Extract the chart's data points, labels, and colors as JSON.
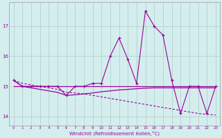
{
  "x": [
    0,
    1,
    2,
    3,
    4,
    5,
    6,
    7,
    8,
    9,
    10,
    11,
    12,
    13,
    14,
    15,
    16,
    17,
    18,
    19,
    20,
    21,
    22,
    23
  ],
  "y_main": [
    15.2,
    15.0,
    15.0,
    15.0,
    15.0,
    15.0,
    14.7,
    15.0,
    15.0,
    15.1,
    15.1,
    16.0,
    16.6,
    15.9,
    15.1,
    17.5,
    17.0,
    16.7,
    15.2,
    14.1,
    15.0,
    15.0,
    14.1,
    15.0
  ],
  "y_flat": [
    15.0,
    15.0,
    15.0,
    15.0,
    15.0,
    15.0,
    15.0,
    15.0,
    15.0,
    15.0,
    15.0,
    15.0,
    15.0,
    15.0,
    15.0,
    15.0,
    15.0,
    15.0,
    15.0,
    15.0,
    15.0,
    15.0,
    15.0,
    15.0
  ],
  "y_curve": [
    15.2,
    15.0,
    14.95,
    14.9,
    14.85,
    14.8,
    14.7,
    14.72,
    14.75,
    14.78,
    14.82,
    14.85,
    14.88,
    14.9,
    14.92,
    14.94,
    14.95,
    14.95,
    14.95,
    14.95,
    14.95,
    14.95,
    14.95,
    14.95
  ],
  "y_dashed": [
    15.2,
    15.1,
    15.05,
    15.0,
    14.95,
    14.9,
    14.8,
    14.78,
    14.75,
    14.7,
    14.65,
    14.6,
    14.55,
    14.5,
    14.45,
    14.4,
    14.35,
    14.3,
    14.25,
    14.2,
    14.15,
    14.1,
    14.07,
    14.05
  ],
  "line_color": "#990099",
  "bg_color": "#d4eeee",
  "grid_color": "#b0c8c8",
  "xlabel": "Windchill (Refroidissement éolien,°C)",
  "ylim": [
    13.7,
    17.8
  ],
  "xlim": [
    -0.5,
    23.5
  ],
  "yticks": [
    14,
    15,
    16,
    17
  ],
  "xticks": [
    0,
    1,
    2,
    3,
    4,
    5,
    6,
    7,
    8,
    9,
    10,
    11,
    12,
    13,
    14,
    15,
    16,
    17,
    18,
    19,
    20,
    21,
    22,
    23
  ]
}
